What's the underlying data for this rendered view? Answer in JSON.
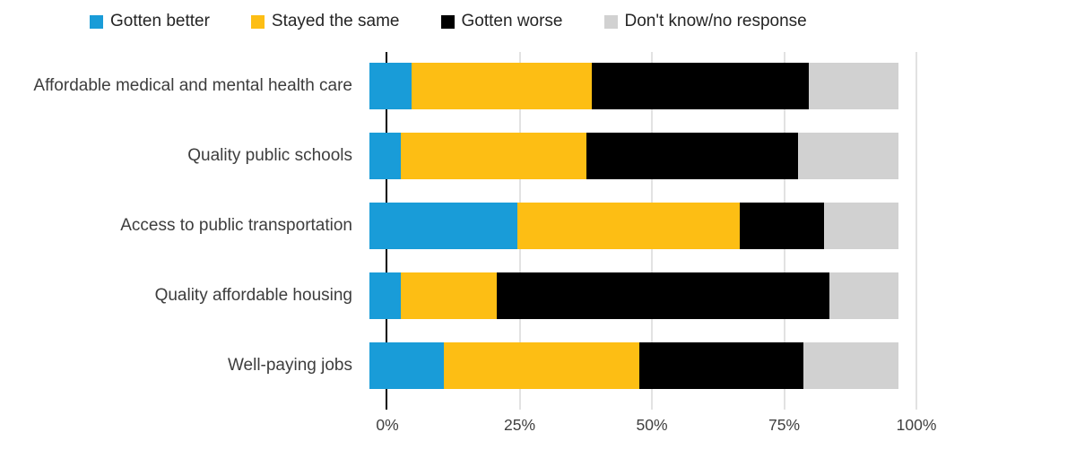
{
  "colors": {
    "gotten_better": "#199cd8",
    "stayed_the_same": "#fdbe14",
    "gotten_worse": "#000000",
    "dont_know": "#d1d1d1",
    "gridline": "#e2e2e2",
    "axis": "#000000",
    "label_text": "#3d3d3d"
  },
  "chart_data": {
    "type": "bar",
    "orientation": "horizontal-stacked",
    "title": "",
    "categories": [
      "Affordable medical and mental health care",
      "Quality public schools",
      "Access to public transportation",
      "Quality affordable housing",
      "Well-paying jobs"
    ],
    "series": [
      {
        "name": "Gotten better",
        "color": "#199cd8",
        "values": [
          8,
          6,
          28,
          6,
          14
        ]
      },
      {
        "name": "Stayed the same",
        "color": "#fdbe14",
        "values": [
          34,
          35,
          42,
          18,
          37
        ]
      },
      {
        "name": "Gotten worse",
        "color": "#000000",
        "values": [
          41,
          40,
          16,
          63,
          31
        ]
      },
      {
        "name": "Don't know/no response",
        "color": "#d1d1d1",
        "values": [
          17,
          19,
          14,
          13,
          18
        ]
      }
    ],
    "x_ticks": [
      {
        "label": "0%",
        "value": 0
      },
      {
        "label": "25%",
        "value": 25
      },
      {
        "label": "50%",
        "value": 50
      },
      {
        "label": "75%",
        "value": 75
      },
      {
        "label": "100%",
        "value": 100
      }
    ],
    "xlim": [
      0,
      100
    ],
    "grid": true,
    "legend_position": "top"
  }
}
